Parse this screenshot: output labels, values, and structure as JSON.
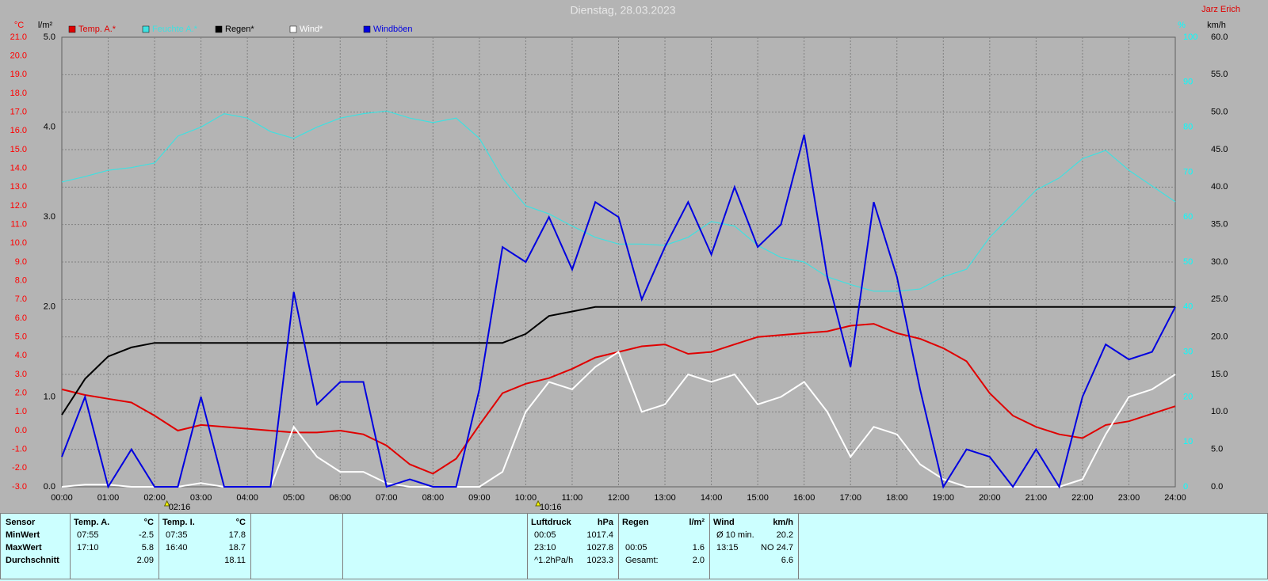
{
  "chart_data": {
    "type": "line",
    "title": "Dienstag, 28.03.2023",
    "author": "Jarz Erich",
    "x": [
      0,
      0.5,
      1,
      1.5,
      2,
      2.5,
      3,
      3.5,
      4,
      4.5,
      5,
      5.5,
      6,
      6.5,
      7,
      7.5,
      8,
      8.5,
      9,
      9.5,
      10,
      10.5,
      11,
      11.5,
      12,
      12.5,
      13,
      13.5,
      14,
      14.5,
      15,
      15.5,
      16,
      16.5,
      17,
      17.5,
      18,
      18.5,
      19,
      19.5,
      20,
      20.5,
      21,
      21.5,
      22,
      22.5,
      23,
      23.5,
      24
    ],
    "xlim": [
      0,
      24
    ],
    "xticks": [
      {
        "value": 0,
        "label": "00:00"
      },
      {
        "value": 1,
        "label": "01:00"
      },
      {
        "value": 2,
        "label": "02:00"
      },
      {
        "value": 3,
        "label": "03:00"
      },
      {
        "value": 4,
        "label": "04:00"
      },
      {
        "value": 5,
        "label": "05:00"
      },
      {
        "value": 6,
        "label": "06:00"
      },
      {
        "value": 7,
        "label": "07:00"
      },
      {
        "value": 8,
        "label": "08:00"
      },
      {
        "value": 9,
        "label": "09:00"
      },
      {
        "value": 10,
        "label": "10:00"
      },
      {
        "value": 11,
        "label": "11:00"
      },
      {
        "value": 12,
        "label": "12:00"
      },
      {
        "value": 13,
        "label": "13:00"
      },
      {
        "value": 14,
        "label": "14:00"
      },
      {
        "value": 15,
        "label": "15:00"
      },
      {
        "value": 16,
        "label": "16:00"
      },
      {
        "value": 17,
        "label": "17:00"
      },
      {
        "value": 18,
        "label": "18:00"
      },
      {
        "value": 19,
        "label": "19:00"
      },
      {
        "value": 20,
        "label": "20:00"
      },
      {
        "value": 21,
        "label": "21:00"
      },
      {
        "value": 22,
        "label": "22:00"
      },
      {
        "value": 23,
        "label": "23:00"
      },
      {
        "value": 24,
        "label": "24:00"
      }
    ],
    "annotations": [
      {
        "x": 2.2667,
        "label": "02:16"
      },
      {
        "x": 10.2667,
        "label": "10:16"
      }
    ],
    "grid": true,
    "axes": [
      {
        "label": "°C",
        "color": "#ff0000",
        "lim": [
          -3,
          21
        ],
        "ticks": [
          {
            "value": -3,
            "label": "-3.0"
          },
          {
            "value": -2,
            "label": "-2.0"
          },
          {
            "value": -1,
            "label": "-1.0"
          },
          {
            "value": 0,
            "label": "0.0"
          },
          {
            "value": 1,
            "label": "1.0"
          },
          {
            "value": 2,
            "label": "2.0"
          },
          {
            "value": 3,
            "label": "3.0"
          },
          {
            "value": 4,
            "label": "4.0"
          },
          {
            "value": 5,
            "label": "5.0"
          },
          {
            "value": 6,
            "label": "6.0"
          },
          {
            "value": 7,
            "label": "7.0"
          },
          {
            "value": 8,
            "label": "8.0"
          },
          {
            "value": 9,
            "label": "9.0"
          },
          {
            "value": 10,
            "label": "10.0"
          },
          {
            "value": 11,
            "label": "11.0"
          },
          {
            "value": 12,
            "label": "12.0"
          },
          {
            "value": 13,
            "label": "13.0"
          },
          {
            "value": 14,
            "label": "14.0"
          },
          {
            "value": 15,
            "label": "15.0"
          },
          {
            "value": 16,
            "label": "16.0"
          },
          {
            "value": 17,
            "label": "17.0"
          },
          {
            "value": 18,
            "label": "18.0"
          },
          {
            "value": 19,
            "label": "19.0"
          },
          {
            "value": 20,
            "label": "20.0"
          },
          {
            "value": 21,
            "label": "21.0"
          }
        ]
      },
      {
        "label": "l/m²",
        "color": "#000000",
        "lim": [
          0,
          5
        ],
        "ticks": [
          {
            "value": 0,
            "label": "0.0"
          },
          {
            "value": 1,
            "label": "1.0"
          },
          {
            "value": 2,
            "label": "2.0"
          },
          {
            "value": 3,
            "label": "3.0"
          },
          {
            "value": 4,
            "label": "4.0"
          },
          {
            "value": 5,
            "label": "5.0"
          }
        ]
      },
      {
        "label": "%",
        "color": "#00ffff",
        "lim": [
          0,
          100
        ],
        "ticks": [
          0,
          10,
          20,
          30,
          40,
          50,
          60,
          70,
          80,
          90,
          100
        ]
      },
      {
        "label": "km/h",
        "color": "#000000",
        "lim": [
          0,
          60
        ],
        "ticks": [
          {
            "value": 0,
            "label": "0.0"
          },
          {
            "value": 5,
            "label": "5.0"
          },
          {
            "value": 10,
            "label": "10.0"
          },
          {
            "value": 15,
            "label": "15.0"
          },
          {
            "value": 20,
            "label": "20.0"
          },
          {
            "value": 25,
            "label": "25.0"
          },
          {
            "value": 30,
            "label": "30.0"
          },
          {
            "value": 35,
            "label": "35.0"
          },
          {
            "value": 40,
            "label": "40.0"
          },
          {
            "value": 45,
            "label": "45.0"
          },
          {
            "value": 50,
            "label": "50.0"
          },
          {
            "value": 55,
            "label": "55.0"
          },
          {
            "value": 60,
            "label": "60.0"
          }
        ]
      }
    ],
    "series": [
      {
        "name": "Temp. A.*",
        "color": "#e00000",
        "axis": 0,
        "values": [
          2.2,
          1.9,
          1.7,
          1.5,
          0.8,
          0.0,
          0.3,
          0.2,
          0.1,
          0.0,
          -0.1,
          -0.1,
          0.0,
          -0.2,
          -0.8,
          -1.8,
          -2.3,
          -1.5,
          0.3,
          2.0,
          2.5,
          2.8,
          3.3,
          3.9,
          4.2,
          4.5,
          4.6,
          4.1,
          4.2,
          4.6,
          5.0,
          5.1,
          5.2,
          5.3,
          5.6,
          5.7,
          5.2,
          4.9,
          4.4,
          3.7,
          2.0,
          0.8,
          0.2,
          -0.2,
          -0.4,
          0.3,
          0.5,
          0.9,
          1.3
        ]
      },
      {
        "name": "Feuchte A.*",
        "color": "#40e0e0",
        "axis": 2,
        "values": [
          67.8,
          69,
          70.4,
          71,
          72,
          78,
          80,
          83,
          82,
          79,
          77.5,
          80,
          82,
          83,
          83.6,
          82,
          81,
          82,
          77.5,
          68.7,
          62.5,
          60.7,
          58,
          55.5,
          54,
          54,
          53.7,
          55.5,
          59,
          58,
          53.7,
          51,
          50,
          46.7,
          45,
          43.5,
          43.5,
          44,
          46.7,
          48.4,
          55.5,
          60.7,
          66,
          68.7,
          73,
          74.8,
          70.4,
          66.9,
          63.4
        ]
      },
      {
        "name": "Regen*",
        "color": "#000000",
        "axis": 1,
        "values": [
          0.8,
          1.2,
          1.45,
          1.55,
          1.6,
          1.6,
          1.6,
          1.6,
          1.6,
          1.6,
          1.6,
          1.6,
          1.6,
          1.6,
          1.6,
          1.6,
          1.6,
          1.6,
          1.6,
          1.6,
          1.7,
          1.9,
          1.95,
          2.0,
          2.0,
          2.0,
          2.0,
          2.0,
          2.0,
          2.0,
          2.0,
          2.0,
          2.0,
          2.0,
          2.0,
          2.0,
          2.0,
          2.0,
          2.0,
          2.0,
          2.0,
          2.0,
          2.0,
          2.0,
          2.0,
          2.0,
          2.0,
          2.0,
          2.0
        ]
      },
      {
        "name": "Wind*",
        "color": "#ffffff",
        "axis": 3,
        "values": [
          0,
          0.3,
          0.3,
          0,
          0,
          0,
          0.5,
          0,
          0,
          0,
          8,
          4,
          2,
          2,
          0.5,
          0,
          0,
          0,
          0,
          2,
          10,
          14,
          13,
          16,
          18,
          10,
          11,
          15,
          14,
          15,
          11,
          12,
          14,
          10,
          4,
          8,
          7,
          3,
          1,
          0,
          0,
          0,
          0,
          0,
          1,
          7,
          12,
          13,
          15
        ]
      },
      {
        "name": "Windböen",
        "color": "#0000e0",
        "axis": 3,
        "values": [
          4,
          12,
          0,
          5,
          0,
          0,
          12,
          0,
          0,
          0,
          26,
          11,
          14,
          14,
          0,
          1,
          0,
          0,
          13,
          32,
          30,
          36,
          29,
          38,
          36,
          25,
          32,
          38,
          31,
          40,
          32,
          35,
          47,
          28,
          16,
          38,
          28,
          13,
          0,
          5,
          4,
          0,
          5,
          0,
          12,
          19,
          17,
          18,
          24
        ]
      }
    ]
  },
  "stats": {
    "row_labels": [
      "Sensor",
      "MinWert",
      "MaxWert",
      "Durchschnitt"
    ],
    "groups": [
      {
        "name": "Temp. A.",
        "unit": "°C",
        "rows": [
          {
            "time": "07:55",
            "value": "-2.5"
          },
          {
            "time": "17:10",
            "value": "5.8"
          },
          {
            "value": "2.09"
          }
        ]
      },
      {
        "name": "Temp. I.",
        "unit": "°C",
        "rows": [
          {
            "time": "07:35",
            "value": "17.8"
          },
          {
            "time": "16:40",
            "value": "18.7"
          },
          {
            "value": "18.11"
          }
        ]
      },
      {
        "name": "Luftdruck",
        "unit": "hPa",
        "rows": [
          {
            "time": "00:05",
            "value": "1017.4"
          },
          {
            "time": "23:10",
            "value": "1027.8"
          },
          {
            "time": "^1.2hPa/h",
            "value": "1023.3"
          }
        ]
      },
      {
        "name": "Regen",
        "unit": "l/m²",
        "rows": [
          {
            "time": "00:05",
            "value": "1.6"
          },
          {
            "time": "Gesamt:",
            "value": "2.0"
          }
        ]
      },
      {
        "name": "Wind",
        "unit": "km/h",
        "rows": [
          {
            "time": "Ø 10 min.",
            "value": "20.2"
          },
          {
            "time": "13:15",
            "value": "NO 24.7"
          },
          {
            "value": "6.6"
          }
        ]
      }
    ]
  }
}
